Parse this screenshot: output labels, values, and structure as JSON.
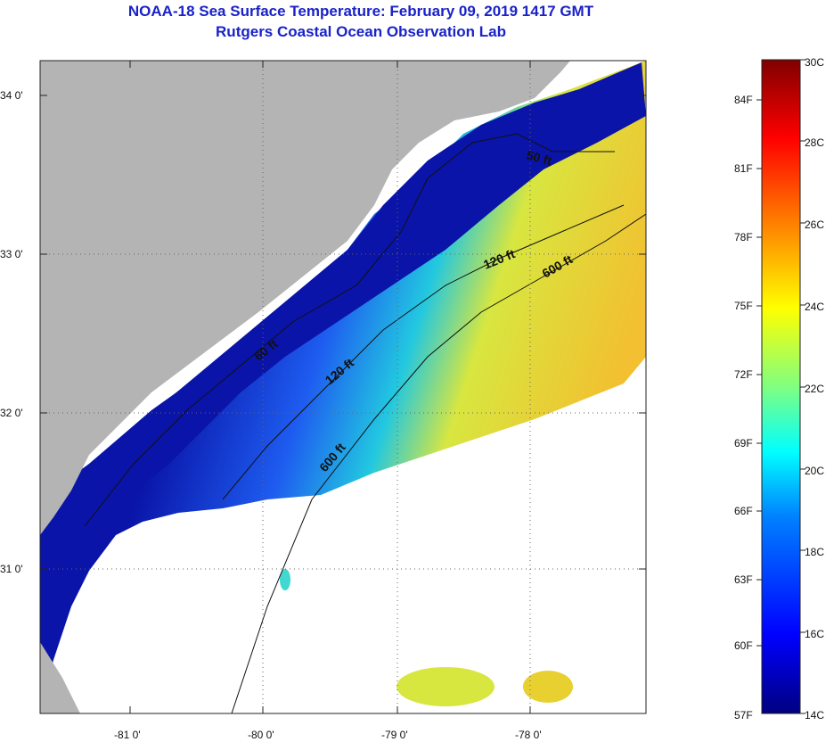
{
  "title": {
    "line1": "NOAA-18 Sea Surface Temperature:  February 09, 2019 1417 GMT",
    "line2": "Rutgers Coastal Ocean Observation Lab"
  },
  "map": {
    "lat_labels": [
      "34 0'",
      "33 0'",
      "32 0'",
      "31 0'"
    ],
    "lon_labels": [
      "-81 0'",
      "-80 0'",
      "-79 0'",
      "-78 0'"
    ],
    "contour_labels": [
      "50 ft",
      "120 ft",
      "600 ft",
      "60 ft",
      "120 ft",
      "600 ft"
    ],
    "colors": {
      "land": "#b4b4b4",
      "cloud": "#ffffff",
      "cold": "#0a14a8",
      "mid": "#1e8cff",
      "warm": "#d8e640"
    }
  },
  "colorbar": {
    "fahrenheit": [
      "84F",
      "81F",
      "78F",
      "75F",
      "72F",
      "69F",
      "66F",
      "63F",
      "60F",
      "57F"
    ],
    "celsius": [
      "30C",
      "28C",
      "26C",
      "24C",
      "22C",
      "20C",
      "18C",
      "16C",
      "14C"
    ],
    "range_c": [
      14,
      30
    ],
    "gradient": [
      "#000080",
      "#0000ff",
      "#0080ff",
      "#00ffff",
      "#80ff80",
      "#ffff00",
      "#ff8000",
      "#ff0000",
      "#800000"
    ]
  }
}
